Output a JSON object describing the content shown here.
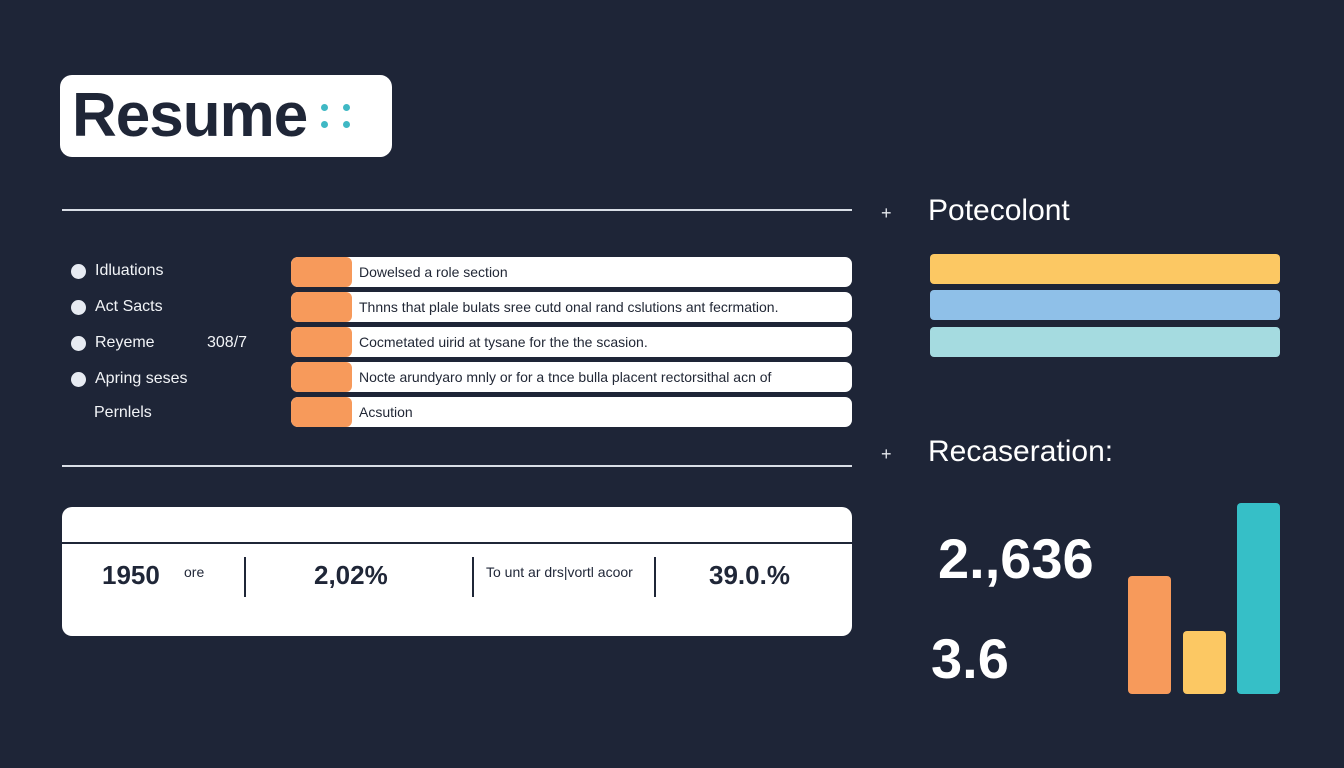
{
  "logo": {
    "text": "Resume",
    "dot_color": "#3fb8c4"
  },
  "list": {
    "items": [
      "Idluations",
      "Act Sacts",
      "Reyeme",
      "Apring seses"
    ],
    "extra_label": "Pernlels",
    "value": "308/7"
  },
  "rows": [
    "Dowelsed a role section",
    "Thnns that plale bulats sree cutd onal rand cslutions ant fecrmation.",
    "Cocmetated uirid at tysane for the the scasion.",
    "Nocte arundyaro mnly or for a tnce bulla placent rectorsithal acn of",
    "Acsution"
  ],
  "stats": {
    "s1_value": "1950",
    "s1_unit": "ore",
    "s2_value": "2,02%",
    "s3_label": "To unt ar drs|vortl acoor",
    "s4_value": "39.0.%"
  },
  "right": {
    "section1_title": "Potecolont",
    "section2_title": "Recaseration:",
    "plus_symbol": "+",
    "number1": "2.,636",
    "number2": "3.6",
    "hbar_colors": [
      "#fcc863",
      "#8fc0e8",
      "#a5dbe0"
    ],
    "vbars": [
      {
        "level": 0.62,
        "color": "#f79a5b"
      },
      {
        "level": 0.33,
        "color": "#fcc863"
      },
      {
        "level": 1.0,
        "color": "#36bfc7"
      }
    ]
  },
  "colors": {
    "background": "#1e2537",
    "accent_orange": "#f79a5b",
    "text_dark": "#1f2637"
  }
}
